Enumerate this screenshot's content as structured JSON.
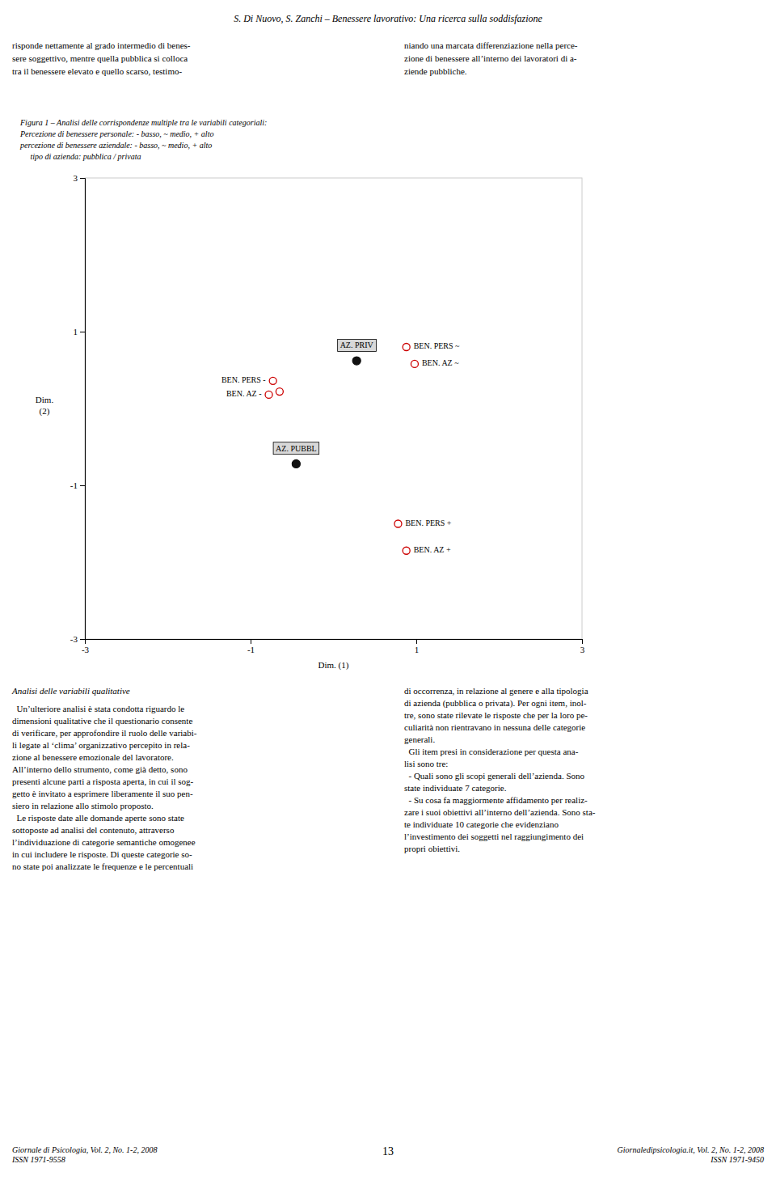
{
  "page": {
    "header": "S. Di Nuovo, S. Zanchi – Benessere lavorativo: Una ricerca sulla soddisfazione",
    "body_col1": [
      "risponde nettamente al grado intermedio di benes-",
      "sere soggettivo, mentre quella pubblica si colloca",
      "tra il benessere elevato e quello scarso, testimo-"
    ],
    "body_col2": [
      "niando una marcata differenziazione nella perce-",
      "zione di benessere all’interno dei lavoratori di a-",
      "ziende pubbliche."
    ],
    "caption": [
      "Figura 1 – Analisi delle corrispondenze multiple tra le variabili categoriali:",
      "Percezione di benessere personale: - basso, ~ medio, + alto",
      "percezione di benessere aziendale: - basso, ~ medio, + alto",
      "     tipo di azienda: pubblica / privata"
    ],
    "section_title": "Analisi delle variabili qualitative",
    "body2_col1": [
      "  Un’ulteriore analisi è stata condotta riguardo le",
      "dimensioni qualitative che il questionario consente",
      "di verificare, per approfondire il ruolo delle variabi-",
      "li legate al ‘clima’ organizzativo percepito in rela-",
      "zione al benessere emozionale del lavoratore.",
      "All’interno dello strumento, come già detto, sono",
      "presenti alcune parti a risposta aperta, in cui il sog-",
      "getto è invitato a esprimere liberamente il suo pen-",
      "siero in relazione allo stimolo proposto.",
      "  Le risposte date alle domande aperte sono state",
      "sottoposte ad analisi del contenuto, attraverso",
      "l’individuazione di categorie semantiche omogenee",
      "in cui includere le risposte. Di queste categorie so-",
      "no state poi analizzate le frequenze e le percentuali"
    ],
    "body2_col2": [
      "di occorrenza, in relazione al genere e alla tipologia",
      "di azienda (pubblica o privata). Per ogni item, inol-",
      "tre, sono state rilevate le risposte che per la loro pe-",
      "culiarità non rientravano in nessuna delle categorie",
      "generali.",
      "  Gli item presi in considerazione per questa ana-",
      "lisi sono tre:",
      "  - Quali sono gli scopi generali dell’azienda. Sono",
      "state individuate 7 categorie.",
      "  - Su cosa fa maggiormente affidamento per realiz-",
      "zare i suoi obiettivi all’interno dell’azienda. Sono sta-",
      "te individuate 10 categorie che evidenziano",
      "l’investimento dei soggetti nel raggiungimento dei",
      "propri obiettivi."
    ],
    "footer_left": [
      "Giornale di Psicologia, Vol. 2, No. 1-2, 2008",
      "ISSN 1971-9558"
    ],
    "footer_center": "13",
    "footer_right": [
      "Giornaledipsicologia.it, Vol. 2, No. 1-2, 2008",
      "ISSN 1971-9450"
    ]
  },
  "chart_data": {
    "type": "scatter",
    "xlabel": "Dim. (1)",
    "ylabel": [
      "Dim.",
      "(2)"
    ],
    "xlim": [
      -3,
      3
    ],
    "ylim": [
      -3,
      3
    ],
    "xticks": [
      -3,
      -1,
      1,
      3
    ],
    "yticks": [
      -3,
      -1,
      1,
      3
    ],
    "grid": false,
    "series": [
      {
        "color": "#111111",
        "marker": "filled",
        "x": [
          0.28,
          -0.45
        ],
        "values": [
          0.62,
          -0.72
        ],
        "labels": [
          "AZ. PRIV",
          "AZ. PUBBL"
        ]
      },
      {
        "color": "#cc0000",
        "marker": "open",
        "x": [
          0.88,
          0.98,
          -0.73,
          -0.65,
          -0.78,
          0.78,
          0.88
        ],
        "values": [
          0.8,
          0.58,
          0.36,
          0.22,
          0.18,
          -1.5,
          -1.85
        ],
        "labels": [
          "BEN. PERS ~",
          "BEN. AZ ~",
          "BEN. PERS -",
          null,
          "BEN. AZ -",
          "BEN. PERS +",
          "BEN. AZ +"
        ]
      }
    ]
  }
}
